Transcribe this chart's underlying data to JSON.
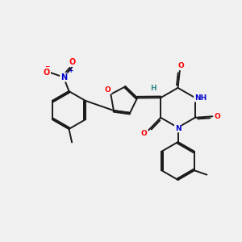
{
  "bg_color": "#f0f0f0",
  "bond_color": "#1a1a1a",
  "bond_width": 1.4,
  "dbo": 0.06,
  "atom_colors": {
    "O": "#ff0000",
    "N": "#0000cc",
    "H": "#338888",
    "C": "#1a1a1a"
  },
  "figsize": [
    3.0,
    3.0
  ],
  "dpi": 100
}
